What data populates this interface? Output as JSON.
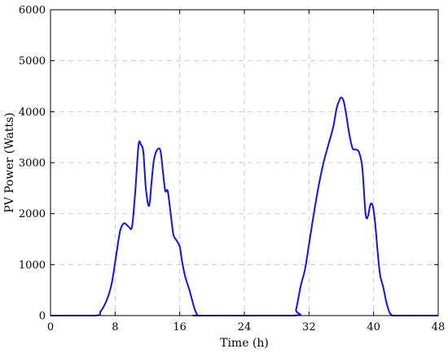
{
  "chart_data": {
    "type": "line",
    "xlabel": "Time (h)",
    "ylabel": "PV Power (Watts)",
    "xlim": [
      0,
      48
    ],
    "ylim": [
      0,
      6000
    ],
    "xticks": [
      0,
      8,
      16,
      24,
      32,
      40,
      48
    ],
    "yticks": [
      0,
      1000,
      2000,
      3000,
      4000,
      5000,
      6000
    ],
    "x_tick_labels": [
      "0",
      "8",
      "16",
      "24",
      "32",
      "40",
      "48"
    ],
    "y_tick_labels": [
      "0",
      "1000",
      "2000",
      "3000",
      "4000",
      "5000",
      "6000"
    ],
    "grid": true,
    "line_color": "#1414e6",
    "series": [
      {
        "x": [
          0,
          5.5,
          6.2,
          7,
          7.6,
          8.1,
          8.6,
          9.0,
          9.3,
          9.7,
          10.1,
          10.5,
          10.9,
          11.2,
          11.5,
          11.8,
          12.2,
          12.5,
          12.8,
          13.2,
          13.6,
          13.9,
          14.2,
          14.5,
          14.8,
          15.2,
          15.5,
          16.0,
          16.3,
          16.7,
          17.2,
          17.8,
          18.2,
          18.6,
          30.0,
          30.4,
          31.0,
          31.5,
          32.0,
          32.6,
          33.2,
          33.8,
          34.4,
          35.0,
          35.4,
          35.7,
          36.0,
          36.3,
          36.6,
          37.0,
          37.4,
          37.8,
          38.2,
          38.6,
          39.0,
          39.3,
          39.6,
          39.9,
          40.2,
          40.5,
          40.8,
          41.2,
          41.6,
          42.0,
          42.4,
          42.8,
          48
        ],
        "y": [
          0,
          0,
          80,
          320,
          650,
          1150,
          1650,
          1800,
          1800,
          1740,
          1750,
          2450,
          3350,
          3350,
          3200,
          2500,
          2150,
          2600,
          3050,
          3250,
          3240,
          2850,
          2450,
          2450,
          2100,
          1600,
          1500,
          1350,
          1050,
          750,
          500,
          150,
          10,
          0,
          0,
          120,
          600,
          900,
          1400,
          2000,
          2550,
          3000,
          3350,
          3700,
          4050,
          4200,
          4280,
          4200,
          3950,
          3550,
          3280,
          3260,
          3200,
          2900,
          2000,
          1950,
          2180,
          2150,
          1800,
          1250,
          800,
          550,
          250,
          50,
          0,
          0,
          0
        ]
      }
    ]
  }
}
